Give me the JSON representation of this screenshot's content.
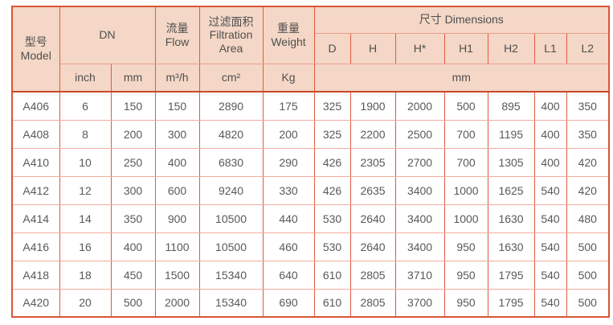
{
  "table": {
    "header": {
      "model_zh": "型号",
      "model_en": "Model",
      "dn": "DN",
      "flow_zh": "流量",
      "flow_en": "Flow",
      "area_zh": "过滤面积",
      "area_en_1": "Filtration",
      "area_en_2": "Area",
      "weight_zh": "重量",
      "weight_en": "Weight",
      "dimensions": "尺寸 Dimensions",
      "dim_cols": [
        "D",
        "H",
        "H*",
        "H1",
        "H2",
        "L1",
        "L2"
      ],
      "unit_inch": "inch",
      "unit_mm": "mm",
      "unit_flow": "m³/h",
      "unit_area": "cm²",
      "unit_weight": "Kg",
      "unit_dims": "mm"
    },
    "rows": [
      {
        "model": "A406",
        "inch": "6",
        "mm": "150",
        "flow": "150",
        "area": "2890",
        "weight": "175",
        "dims": [
          "325",
          "1900",
          "2000",
          "500",
          "895",
          "400",
          "350"
        ]
      },
      {
        "model": "A408",
        "inch": "8",
        "mm": "200",
        "flow": "300",
        "area": "4820",
        "weight": "200",
        "dims": [
          "325",
          "2200",
          "2500",
          "700",
          "1195",
          "400",
          "350"
        ]
      },
      {
        "model": "A410",
        "inch": "10",
        "mm": "250",
        "flow": "400",
        "area": "6830",
        "weight": "290",
        "dims": [
          "426",
          "2305",
          "2700",
          "700",
          "1305",
          "400",
          "420"
        ]
      },
      {
        "model": "A412",
        "inch": "12",
        "mm": "300",
        "flow": "600",
        "area": "9240",
        "weight": "330",
        "dims": [
          "426",
          "2635",
          "3400",
          "1000",
          "1625",
          "540",
          "420"
        ]
      },
      {
        "model": "A414",
        "inch": "14",
        "mm": "350",
        "flow": "900",
        "area": "10500",
        "weight": "440",
        "dims": [
          "530",
          "2640",
          "3400",
          "1000",
          "1630",
          "540",
          "480"
        ]
      },
      {
        "model": "A416",
        "inch": "16",
        "mm": "400",
        "flow": "1100",
        "area": "10500",
        "weight": "460",
        "dims": [
          "530",
          "2640",
          "3400",
          "950",
          "1630",
          "540",
          "500"
        ]
      },
      {
        "model": "A418",
        "inch": "18",
        "mm": "450",
        "flow": "1500",
        "area": "15340",
        "weight": "640",
        "dims": [
          "610",
          "2805",
          "3710",
          "950",
          "1795",
          "540",
          "500"
        ]
      },
      {
        "model": "A420",
        "inch": "20",
        "mm": "500",
        "flow": "2000",
        "area": "15340",
        "weight": "690",
        "dims": [
          "610",
          "2805",
          "3700",
          "950",
          "1795",
          "540",
          "500"
        ]
      }
    ]
  },
  "colors": {
    "header_bg": "#f4d7c6",
    "outer_border": "#d85637",
    "grid_vertical": "#e05a41",
    "grid_horizontal": "#f2ab9b",
    "text": "#565656"
  }
}
